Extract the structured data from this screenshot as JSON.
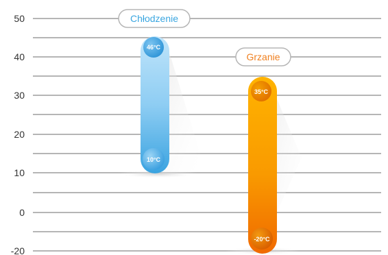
{
  "chart_data": {
    "type": "range-bar",
    "y_ticks": [
      "50",
      "40",
      "30",
      "20",
      "10",
      "0",
      "-20"
    ],
    "series": [
      {
        "name": "Chłodzenie",
        "top_label": "46°C",
        "bottom_label": "10°C",
        "color_top": "#b9e2fa",
        "color_bottom": "#3aa3e0",
        "label_color": "#3aa6e0"
      },
      {
        "name": "Grzanie",
        "top_label": "35°C",
        "bottom_label": "-20°C",
        "color_top": "#ffb300",
        "color_bottom": "#f07000",
        "label_color": "#f08020"
      }
    ],
    "grid": true,
    "legend": "none"
  }
}
